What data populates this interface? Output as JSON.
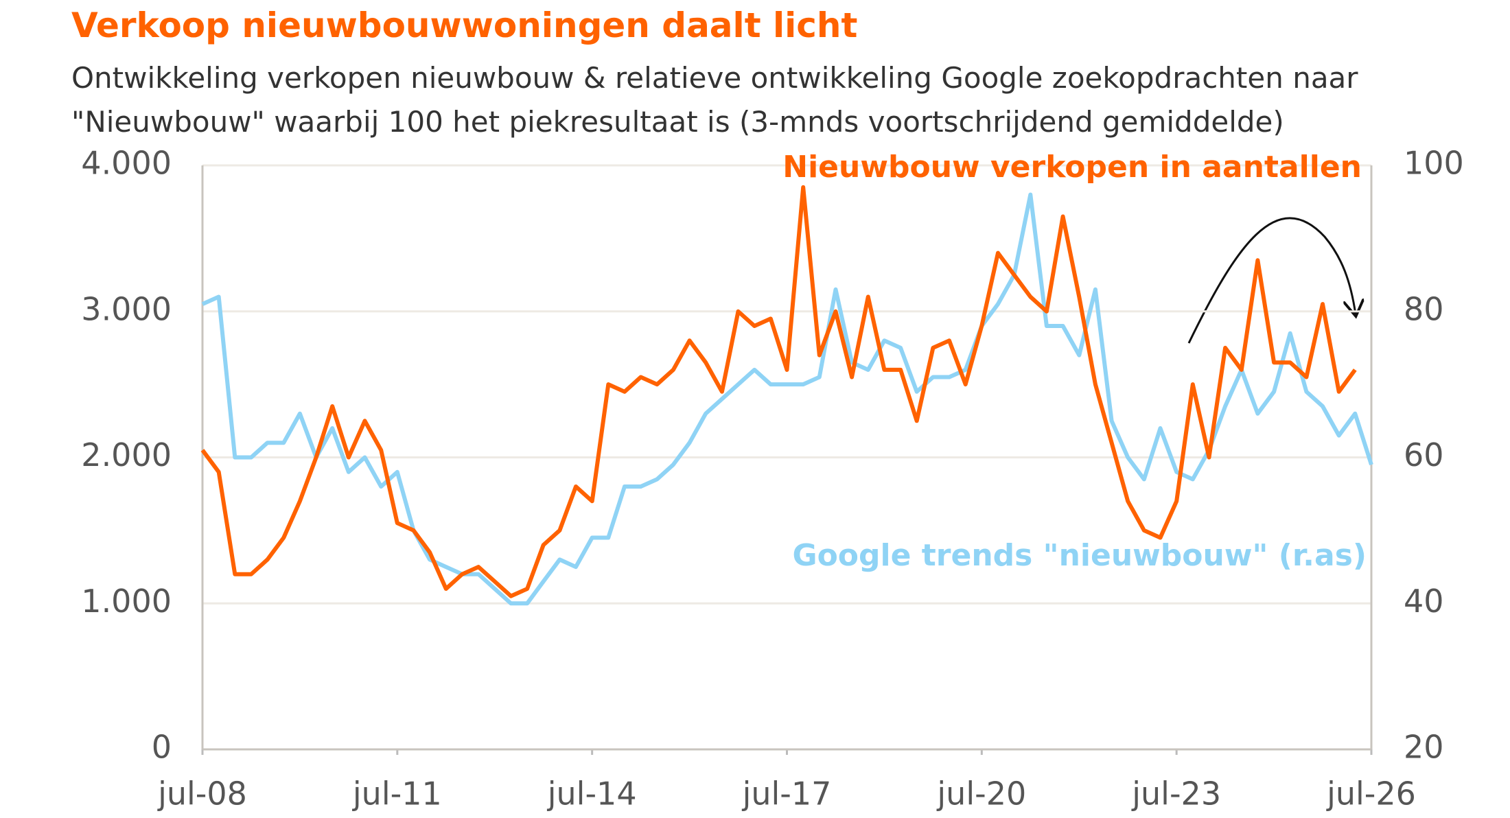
{
  "chart_data": {
    "type": "line",
    "title": "Verkoop nieuwbouwwoningen daalt licht",
    "subtitle": "Ontwikkeling verkopen nieuwbouw & relatieve ontwikkeling Google zoekopdrachten naar \"Nieuwbouw\" waarbij 100 het piekresultaat is (3-mnds voortschrijdend gemiddelde)",
    "x": [
      2008.5,
      2008.75,
      2009,
      2009.25,
      2009.5,
      2009.75,
      2010,
      2010.25,
      2010.5,
      2010.75,
      2011,
      2011.25,
      2011.5,
      2011.75,
      2012,
      2012.25,
      2012.5,
      2012.75,
      2013,
      2013.25,
      2013.5,
      2013.75,
      2014,
      2014.25,
      2014.5,
      2014.75,
      2015,
      2015.25,
      2015.5,
      2015.75,
      2016,
      2016.25,
      2016.5,
      2016.75,
      2017,
      2017.25,
      2017.5,
      2017.75,
      2018,
      2018.25,
      2018.5,
      2018.75,
      2019,
      2019.25,
      2019.5,
      2019.75,
      2020,
      2020.25,
      2020.5,
      2020.75,
      2021,
      2021.25,
      2021.5,
      2021.75,
      2022,
      2022.25,
      2022.5,
      2022.75,
      2023,
      2023.25,
      2023.5,
      2023.75,
      2024,
      2024.25,
      2024.5,
      2024.75,
      2025,
      2025.25,
      2025.5,
      2025.75,
      2026,
      2026.25,
      2026.5
    ],
    "xlim": [
      2008.5,
      2026.5
    ],
    "xticks": [
      {
        "value": 2008.5,
        "label": "jul-08"
      },
      {
        "value": 2011.5,
        "label": "jul-11"
      },
      {
        "value": 2014.5,
        "label": "jul-14"
      },
      {
        "value": 2017.5,
        "label": "jul-17"
      },
      {
        "value": 2020.5,
        "label": "jul-20"
      },
      {
        "value": 2023.5,
        "label": "jul-23"
      },
      {
        "value": 2026.5,
        "label": "jul-26"
      }
    ],
    "ylim": [
      0,
      4000
    ],
    "yticks": [
      0,
      {
        "value": 1000,
        "label": "1.000"
      },
      {
        "value": 2000,
        "label": "2.000"
      },
      {
        "value": 3000,
        "label": "3.000"
      },
      {
        "value": 4000,
        "label": "4.000"
      }
    ],
    "y2lim": [
      20,
      100
    ],
    "y2ticks": [
      20,
      40,
      60,
      80,
      100
    ],
    "grid": true,
    "series": [
      {
        "name": "Nieuwbouw verkopen in aantallen",
        "color": "#ff6200",
        "values": [
          2050,
          1900,
          1200,
          1200,
          1300,
          1450,
          1700,
          2000,
          2350,
          2000,
          2250,
          2050,
          1550,
          1500,
          1350,
          1100,
          1200,
          1250,
          1150,
          1050,
          1100,
          1400,
          1500,
          1800,
          1700,
          2500,
          2450,
          2550,
          2500,
          2600,
          2800,
          2650,
          2450,
          3000,
          2900,
          2950,
          2600,
          3850,
          2700,
          3000,
          2550,
          3100,
          2600,
          2600,
          2250,
          2750,
          2800,
          2500,
          2900,
          3400,
          3250,
          3100,
          3000,
          3650,
          3100,
          2500,
          2100,
          1700,
          1500,
          1450,
          1700,
          2500,
          2000,
          2750,
          2600,
          3350,
          2650,
          2650,
          2550,
          3050,
          2450,
          2600,
          null
        ]
      },
      {
        "name": "Google trends \"nieuwbouw\" (r.as)",
        "color": "#8fd3f5",
        "axis": "y2",
        "values": [
          81,
          82,
          60,
          60,
          62,
          62,
          66,
          60,
          64,
          58,
          60,
          56,
          58,
          50,
          46,
          45,
          44,
          44,
          42,
          40,
          40,
          43,
          46,
          45,
          49,
          49,
          56,
          56,
          57,
          59,
          62,
          66,
          68,
          70,
          72,
          70,
          70,
          70,
          71,
          83,
          73,
          72,
          76,
          75,
          69,
          71,
          71,
          72,
          78,
          81,
          85,
          96,
          78,
          78,
          74,
          83,
          65,
          60,
          57,
          64,
          58,
          57,
          61,
          67,
          72,
          66,
          69,
          77,
          69,
          67,
          63,
          66,
          59
        ]
      }
    ]
  }
}
